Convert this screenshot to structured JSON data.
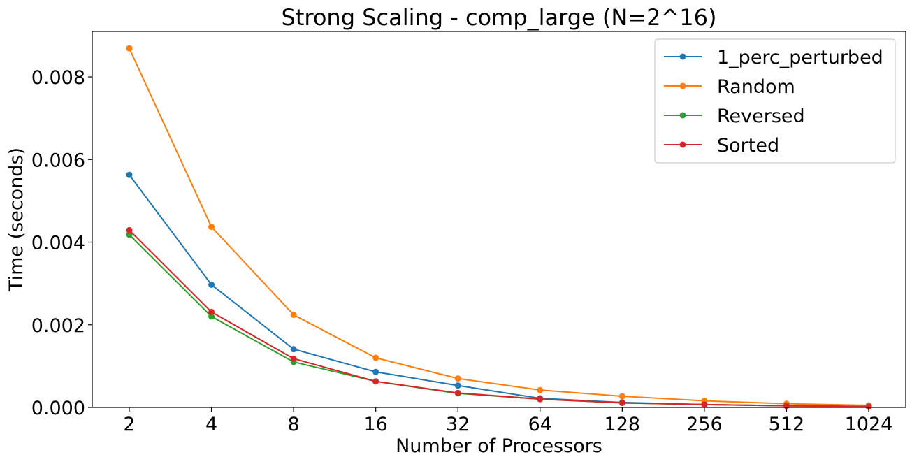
{
  "chart_data": {
    "type": "line",
    "title": "Strong Scaling - comp_large (N=2^16)",
    "xlabel": "Number of Processors",
    "ylabel": "Time (seconds)",
    "categories": [
      "2",
      "4",
      "8",
      "16",
      "32",
      "64",
      "128",
      "256",
      "512",
      "1024"
    ],
    "ylim": [
      0,
      0.0091
    ],
    "yticks": [
      0.0,
      0.002,
      0.004,
      0.006,
      0.008
    ],
    "ytick_labels": [
      "0.000",
      "0.002",
      "0.004",
      "0.006",
      "0.008"
    ],
    "grid": false,
    "legend_position": "top-right",
    "series": [
      {
        "name": "1_perc_perturbed",
        "color": "#1f77b4",
        "values": [
          0.00563,
          0.00297,
          0.00141,
          0.00086,
          0.00053,
          0.00022,
          0.00012,
          7e-05,
          4e-05,
          3e-05
        ]
      },
      {
        "name": "Random",
        "color": "#ff7f0e",
        "values": [
          0.00869,
          0.00437,
          0.00224,
          0.0012,
          0.0007,
          0.00042,
          0.00027,
          0.00016,
          9e-05,
          5e-05
        ]
      },
      {
        "name": "Reversed",
        "color": "#2ca02c",
        "values": [
          0.00418,
          0.0022,
          0.0011,
          0.00063,
          0.00034,
          0.0002,
          0.00011,
          7e-05,
          4e-05,
          2e-05
        ]
      },
      {
        "name": "Sorted",
        "color": "#d62728",
        "values": [
          0.00429,
          0.00231,
          0.00118,
          0.00063,
          0.00035,
          0.0002,
          0.00011,
          7e-05,
          4e-05,
          2e-05
        ]
      }
    ]
  }
}
